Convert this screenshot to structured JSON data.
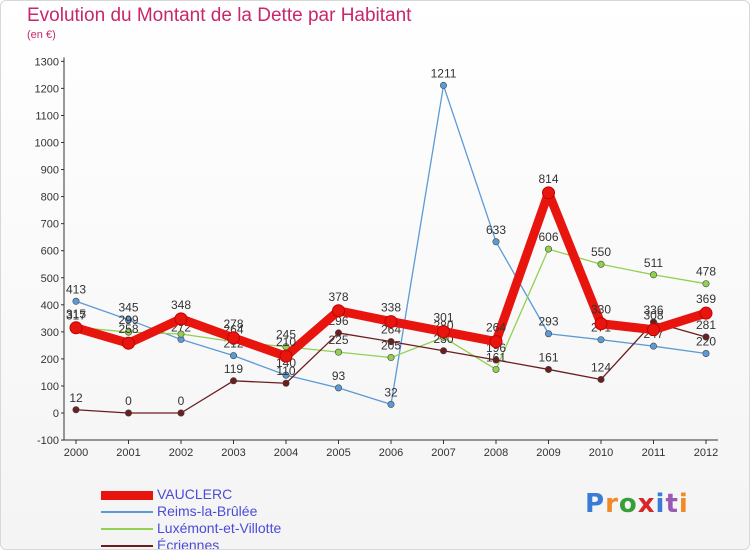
{
  "title": "Evolution du Montant de la Dette par Habitant",
  "subtitle": "(en €)",
  "logo": {
    "text": "Proxiti",
    "colors": [
      "#3a7bd5",
      "#f08a24",
      "#3a9d3a",
      "#d62828",
      "#3a7bd5",
      "#9b59b6",
      "#f08a24"
    ]
  },
  "chart_data": {
    "type": "line",
    "title": "Evolution du Montant de la Dette par Habitant",
    "unit": "(en €)",
    "x": [
      "2000",
      "2001",
      "2002",
      "2003",
      "2004",
      "2005",
      "2006",
      "2007",
      "2008",
      "2009",
      "2010",
      "2011",
      "2012"
    ],
    "ylim": [
      -100,
      1300
    ],
    "yticks": [
      -100,
      0,
      100,
      200,
      300,
      400,
      500,
      600,
      700,
      800,
      900,
      1000,
      1100,
      1200,
      1300
    ],
    "grid": false,
    "legend_position": "bottom-left",
    "series": [
      {
        "name": "VAUCLERC",
        "color": "#e8150f",
        "values": [
          315,
          258,
          348,
          278,
          210,
          378,
          338,
          301,
          264,
          814,
          330,
          308,
          369
        ]
      },
      {
        "name": "Reims-la-Brûlée",
        "color": "#5b9bd5",
        "values": [
          413,
          345,
          272,
          212,
          140,
          93,
          32,
          1211,
          633,
          293,
          271,
          247,
          220
        ]
      },
      {
        "name": "Luxémont-et-Villotte",
        "color": "#92d050",
        "values": [
          317,
          299,
          292,
          264,
          245,
          225,
          205,
          280,
          161,
          606,
          550,
          511,
          478
        ]
      },
      {
        "name": "Écriennes",
        "color": "#6b1e1e",
        "values": [
          12,
          0,
          0,
          119,
          110,
          296,
          264,
          230,
          196,
          161,
          124,
          336,
          281
        ]
      }
    ]
  }
}
